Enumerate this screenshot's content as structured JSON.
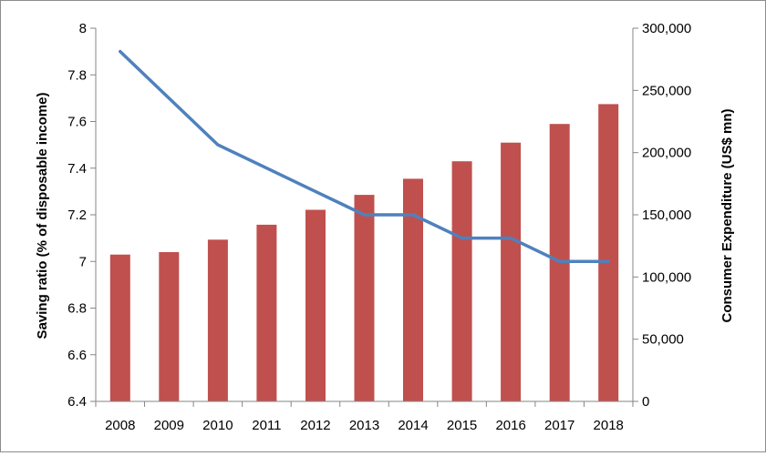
{
  "chart_data": {
    "type": "bar",
    "title": "",
    "categories": [
      "2008",
      "2009",
      "2010",
      "2011",
      "2012",
      "2013",
      "2014",
      "2015",
      "2016",
      "2017",
      "2018"
    ],
    "series": [
      {
        "type": "bar",
        "axis": "right",
        "values": [
          118000,
          120000,
          130000,
          142000,
          154000,
          166000,
          179000,
          193000,
          208000,
          223000,
          239000
        ]
      },
      {
        "type": "line",
        "axis": "left",
        "values": [
          7.9,
          7.7,
          7.5,
          7.4,
          7.3,
          7.2,
          7.2,
          7.1,
          7.1,
          7.0,
          7.0
        ]
      }
    ],
    "ylabel": "Saving ratio  (% of disposable income)",
    "ylim": [
      6.4,
      8
    ],
    "yticks": [
      "6.4",
      "6.6",
      "6.8",
      "7",
      "7.2",
      "7.4",
      "7.6",
      "7.8",
      "8"
    ],
    "y2label": "Consumer Expenditure (US$ mn)",
    "y2lim": [
      0,
      300000
    ],
    "y2ticks": [
      "0",
      "50,000",
      "100,000",
      "150,000",
      "200,000",
      "250,000",
      "300,000"
    ],
    "grid": false,
    "legend": "none",
    "colors": {
      "bar": "#c0504d",
      "line": "#4f81bd",
      "axis": "#868686"
    }
  }
}
